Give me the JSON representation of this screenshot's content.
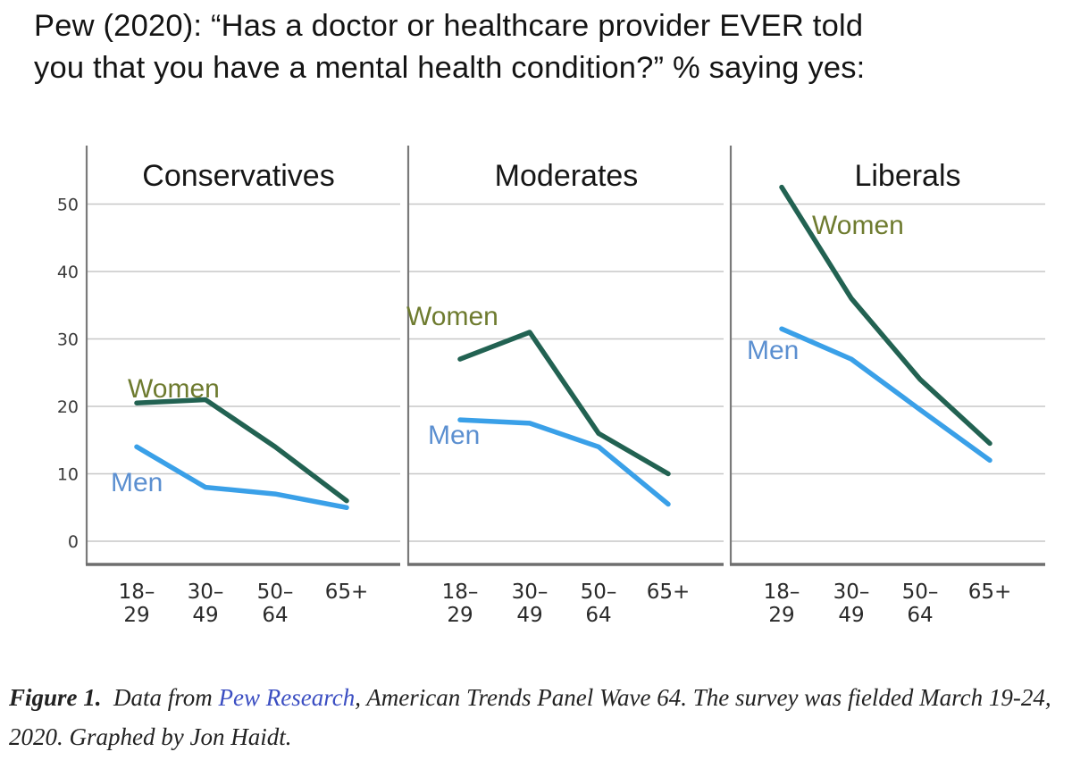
{
  "title": {
    "line1": "Pew (2020): “Has a doctor or healthcare provider EVER told",
    "line2": "you that you have a mental health condition?” % saying yes:"
  },
  "chart_data": {
    "type": "line",
    "title": "Pew (2020): “Has a doctor or healthcare provider EVER told you that you have a mental health condition?” % saying yes:",
    "categories": [
      "18–29",
      "30–49",
      "50–64",
      "65+"
    ],
    "xtick_lines": [
      [
        "18–",
        "29"
      ],
      [
        "30–",
        "49"
      ],
      [
        "50–",
        "64"
      ],
      [
        "65+"
      ]
    ],
    "yticks": [
      0,
      10,
      20,
      30,
      40,
      50
    ],
    "ylim": [
      0,
      58
    ],
    "xlabel": "",
    "ylabel": "",
    "grid": true,
    "legend_position": "inline-labels",
    "panels": [
      {
        "title": "Conservatives",
        "series": [
          {
            "name": "Women",
            "values": [
              20.5,
              21,
              14,
              6
            ]
          },
          {
            "name": "Men",
            "values": [
              14,
              8,
              7,
              5
            ]
          }
        ]
      },
      {
        "title": "Moderates",
        "series": [
          {
            "name": "Women",
            "values": [
              27,
              31,
              16,
              10
            ]
          },
          {
            "name": "Men",
            "values": [
              18,
              17.5,
              14,
              5.5
            ]
          }
        ]
      },
      {
        "title": "Liberals",
        "series": [
          {
            "name": "Women",
            "values": [
              52.5,
              36,
              24,
              14.5
            ]
          },
          {
            "name": "Men",
            "values": [
              31.5,
              27,
              19.5,
              12
            ]
          }
        ]
      }
    ],
    "series_colors": {
      "Women": {
        "line": "#226252",
        "label": "#6e7b2f"
      },
      "Men": {
        "line": "#3aa0e8",
        "label": "#5b8fd0"
      }
    },
    "grid_color": "#c7c7c7",
    "spine_color": "#7a7a7a",
    "tick_label_color": "#3b3b3b"
  },
  "caption": {
    "figure_label": "Figure 1.",
    "text_before_link": "  Data from ",
    "link_text": "Pew Research",
    "text_after_link": ", American Trends Panel Wave 64. The survey was fielded March 19-24, 2020. Graphed by Jon Haidt.",
    "link_color": "#3b4ec2"
  }
}
